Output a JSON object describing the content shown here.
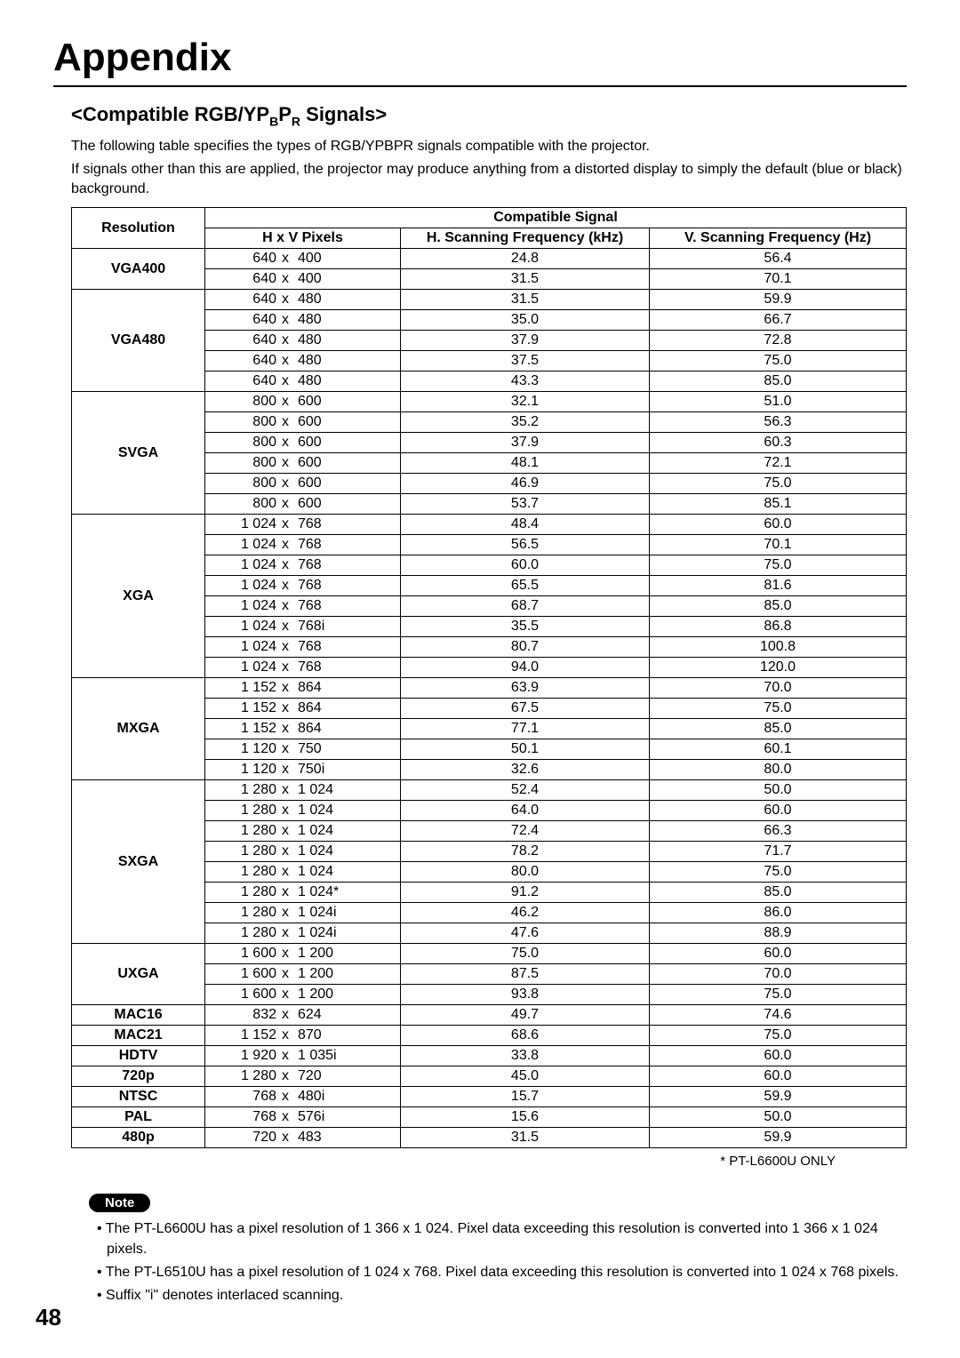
{
  "title": "Appendix",
  "section_heading": "<Compatible RGB/YPBPR Signals>",
  "intro_lines": [
    "The following table specifies the types of RGB/YPBPR signals compatible with the projector.",
    "If signals other than this are applied, the projector may produce anything from a distorted display to simply the default (blue or black) background."
  ],
  "table": {
    "header_resolution": "Resolution",
    "header_group": "Compatible Signal",
    "header_hv": "H x V Pixels",
    "header_hfreq": "H. Scanning Frequency (kHz)",
    "header_vfreq": "V. Scanning Frequency (Hz)",
    "groups": [
      {
        "label": "VGA400",
        "rows": [
          {
            "w": "640",
            "h": "400",
            "hf": "24.8",
            "vf": "56.4"
          },
          {
            "w": "640",
            "h": "400",
            "hf": "31.5",
            "vf": "70.1"
          }
        ]
      },
      {
        "label": "VGA480",
        "rows": [
          {
            "w": "640",
            "h": "480",
            "hf": "31.5",
            "vf": "59.9"
          },
          {
            "w": "640",
            "h": "480",
            "hf": "35.0",
            "vf": "66.7"
          },
          {
            "w": "640",
            "h": "480",
            "hf": "37.9",
            "vf": "72.8"
          },
          {
            "w": "640",
            "h": "480",
            "hf": "37.5",
            "vf": "75.0"
          },
          {
            "w": "640",
            "h": "480",
            "hf": "43.3",
            "vf": "85.0"
          }
        ]
      },
      {
        "label": "SVGA",
        "rows": [
          {
            "w": "800",
            "h": "600",
            "hf": "32.1",
            "vf": "51.0"
          },
          {
            "w": "800",
            "h": "600",
            "hf": "35.2",
            "vf": "56.3"
          },
          {
            "w": "800",
            "h": "600",
            "hf": "37.9",
            "vf": "60.3"
          },
          {
            "w": "800",
            "h": "600",
            "hf": "48.1",
            "vf": "72.1"
          },
          {
            "w": "800",
            "h": "600",
            "hf": "46.9",
            "vf": "75.0"
          },
          {
            "w": "800",
            "h": "600",
            "hf": "53.7",
            "vf": "85.1"
          }
        ]
      },
      {
        "label": "XGA",
        "rows": [
          {
            "w": "1 024",
            "h": "768",
            "hf": "48.4",
            "vf": "60.0"
          },
          {
            "w": "1 024",
            "h": "768",
            "hf": "56.5",
            "vf": "70.1"
          },
          {
            "w": "1 024",
            "h": "768",
            "hf": "60.0",
            "vf": "75.0"
          },
          {
            "w": "1 024",
            "h": "768",
            "hf": "65.5",
            "vf": "81.6"
          },
          {
            "w": "1 024",
            "h": "768",
            "hf": "68.7",
            "vf": "85.0"
          },
          {
            "w": "1 024",
            "h": "768i",
            "hf": "35.5",
            "vf": "86.8"
          },
          {
            "w": "1 024",
            "h": "768",
            "hf": "80.7",
            "vf": "100.8"
          },
          {
            "w": "1 024",
            "h": "768",
            "hf": "94.0",
            "vf": "120.0"
          }
        ]
      },
      {
        "label": "MXGA",
        "rows": [
          {
            "w": "1 152",
            "h": "864",
            "hf": "63.9",
            "vf": "70.0"
          },
          {
            "w": "1 152",
            "h": "864",
            "hf": "67.5",
            "vf": "75.0"
          },
          {
            "w": "1 152",
            "h": "864",
            "hf": "77.1",
            "vf": "85.0"
          },
          {
            "w": "1 120",
            "h": "750",
            "hf": "50.1",
            "vf": "60.1"
          },
          {
            "w": "1 120",
            "h": "750i",
            "hf": "32.6",
            "vf": "80.0"
          }
        ]
      },
      {
        "label": "SXGA",
        "rows": [
          {
            "w": "1 280",
            "h": "1 024",
            "hf": "52.4",
            "vf": "50.0"
          },
          {
            "w": "1 280",
            "h": "1 024",
            "hf": "64.0",
            "vf": "60.0"
          },
          {
            "w": "1 280",
            "h": "1 024",
            "hf": "72.4",
            "vf": "66.3"
          },
          {
            "w": "1 280",
            "h": "1 024",
            "hf": "78.2",
            "vf": "71.7"
          },
          {
            "w": "1 280",
            "h": "1 024",
            "hf": "80.0",
            "vf": "75.0"
          },
          {
            "w": "1 280",
            "h": "1 024*",
            "hf": "91.2",
            "vf": "85.0"
          },
          {
            "w": "1 280",
            "h": "1 024i",
            "hf": "46.2",
            "vf": "86.0"
          },
          {
            "w": "1 280",
            "h": "1 024i",
            "hf": "47.6",
            "vf": "88.9"
          }
        ]
      },
      {
        "label": "UXGA",
        "rows": [
          {
            "w": "1 600",
            "h": "1 200",
            "hf": "75.0",
            "vf": "60.0"
          },
          {
            "w": "1 600",
            "h": "1 200",
            "hf": "87.5",
            "vf": "70.0"
          },
          {
            "w": "1 600",
            "h": "1 200",
            "hf": "93.8",
            "vf": "75.0"
          }
        ]
      },
      {
        "label": "MAC16",
        "rows": [
          {
            "w": "832",
            "h": "624",
            "hf": "49.7",
            "vf": "74.6"
          }
        ]
      },
      {
        "label": "MAC21",
        "rows": [
          {
            "w": "1 152",
            "h": "870",
            "hf": "68.6",
            "vf": "75.0"
          }
        ]
      },
      {
        "label": "HDTV",
        "rows": [
          {
            "w": "1 920",
            "h": "1 035i",
            "hf": "33.8",
            "vf": "60.0"
          }
        ]
      },
      {
        "label": "720p",
        "rows": [
          {
            "w": "1 280",
            "h": "720",
            "hf": "45.0",
            "vf": "60.0"
          }
        ]
      },
      {
        "label": "NTSC",
        "rows": [
          {
            "w": "768",
            "h": "480i",
            "hf": "15.7",
            "vf": "59.9"
          }
        ]
      },
      {
        "label": "PAL",
        "rows": [
          {
            "w": "768",
            "h": "576i",
            "hf": "15.6",
            "vf": "50.0"
          }
        ]
      },
      {
        "label": "480p",
        "rows": [
          {
            "w": "720",
            "h": "483",
            "hf": "31.5",
            "vf": "59.9"
          }
        ]
      }
    ]
  },
  "footnote": "* PT-L6600U ONLY",
  "note_label": "Note",
  "notes": [
    "• The PT-L6600U has a pixel resolution of 1 366 x 1 024. Pixel data exceeding this resolution is converted into 1 366 x 1 024 pixels.",
    "• The PT-L6510U has a pixel resolution of 1 024 x 768. Pixel data exceeding this resolution is converted into 1 024 x 768 pixels.",
    "• Suffix \"i\" denotes interlaced scanning."
  ],
  "page_number": "48"
}
